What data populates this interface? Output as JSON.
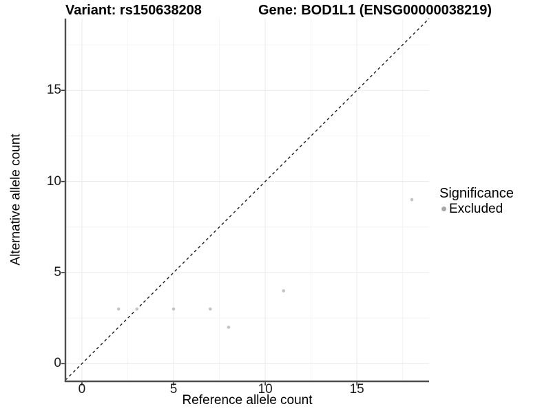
{
  "figure": {
    "title_left": "Variant: rs150638208",
    "title_right": "Gene: BOD1L1 (ENSG00000038219)"
  },
  "chart_data": {
    "type": "scatter",
    "title": "Variant: rs150638208   Gene: BOD1L1 (ENSG00000038219)",
    "xlabel": "Reference allele count",
    "ylabel": "Alternative allele count",
    "xlim": [
      -0.9,
      18.94
    ],
    "ylim": [
      -0.97,
      18.94
    ],
    "x_major_ticks": [
      0,
      5,
      10,
      15
    ],
    "y_major_ticks": [
      0,
      5,
      10,
      15
    ],
    "x_minor_gridlines": [
      2.5,
      7.5,
      12.5,
      17.5
    ],
    "y_minor_gridlines": [
      2.5,
      7.5,
      12.5,
      17.5
    ],
    "grid": true,
    "series": [
      {
        "name": "Excluded",
        "color": "#c4c4c4",
        "marker": "circle",
        "points": [
          {
            "x": 2,
            "y": 3
          },
          {
            "x": 3,
            "y": 3
          },
          {
            "x": 5,
            "y": 3
          },
          {
            "x": 7,
            "y": 3
          },
          {
            "x": 8,
            "y": 2
          },
          {
            "x": 11,
            "y": 4
          },
          {
            "x": 18,
            "y": 9
          }
        ]
      }
    ],
    "reference_line": {
      "type": "identity",
      "style": "dashed",
      "color": "#1a1a1a"
    },
    "legend": {
      "title": "Significance",
      "position": "right",
      "items": [
        {
          "label": "Excluded",
          "marker_color": "#a8a8a8"
        }
      ]
    },
    "colors": {
      "background": "#ffffff",
      "grid_major": "#e9e9e9",
      "grid_minor": "#f4f4f4",
      "axis_line": "#4d4d4d",
      "tick_mark": "#333333",
      "tick_text": "#1a1a1a"
    }
  }
}
